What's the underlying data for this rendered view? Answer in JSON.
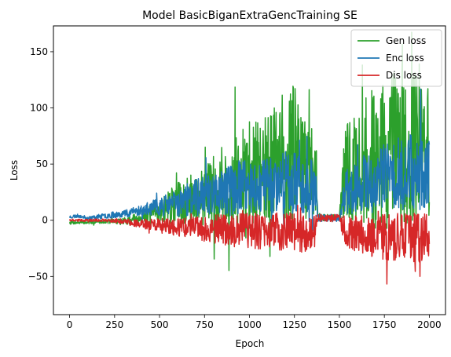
{
  "chart_data": {
    "type": "line",
    "title": "Model BasicBiganExtraGencTraining SE",
    "xlabel": "Epoch",
    "ylabel": "Loss",
    "xlim": [
      -90,
      2090
    ],
    "ylim": [
      -84,
      173
    ],
    "xticks": [
      0,
      250,
      500,
      750,
      1000,
      1250,
      1500,
      1750,
      2000
    ],
    "yticks": [
      -50,
      0,
      50,
      100,
      150
    ],
    "grid": false,
    "legend_position": "top-right",
    "series": [
      {
        "name": "Gen loss",
        "color": "#2ca02c",
        "noise_seed": 7,
        "envelope": [
          [
            0,
            -2,
            1.0
          ],
          [
            100,
            -2,
            0.8
          ],
          [
            200,
            -1,
            1.0
          ],
          [
            300,
            -1,
            2.0
          ],
          [
            400,
            3,
            3.0
          ],
          [
            500,
            8,
            6.0
          ],
          [
            600,
            15,
            12.0
          ],
          [
            700,
            20,
            15.0
          ],
          [
            800,
            25,
            20.0
          ],
          [
            900,
            30,
            25.0
          ],
          [
            1000,
            40,
            30.0
          ],
          [
            1100,
            45,
            30.0
          ],
          [
            1200,
            55,
            40.0
          ],
          [
            1250,
            60,
            40.0
          ],
          [
            1300,
            45,
            30.0
          ],
          [
            1370,
            40,
            25.0
          ],
          [
            1380,
            3,
            2.0
          ],
          [
            1500,
            2,
            2.0
          ],
          [
            1530,
            40,
            30.0
          ],
          [
            1600,
            45,
            35.0
          ],
          [
            1700,
            55,
            40.0
          ],
          [
            1800,
            60,
            45.0
          ],
          [
            1900,
            65,
            45.0
          ],
          [
            2000,
            60,
            40.0
          ]
        ]
      },
      {
        "name": "Enc loss",
        "color": "#1f77b4",
        "noise_seed": 23,
        "envelope": [
          [
            0,
            3,
            1.0
          ],
          [
            50,
            4,
            1.0
          ],
          [
            100,
            2,
            0.8
          ],
          [
            200,
            4,
            1.5
          ],
          [
            300,
            6,
            2.0
          ],
          [
            400,
            9,
            3.0
          ],
          [
            500,
            12,
            5.0
          ],
          [
            600,
            16,
            8.0
          ],
          [
            700,
            20,
            10.0
          ],
          [
            800,
            24,
            12.0
          ],
          [
            900,
            28,
            15.0
          ],
          [
            1000,
            30,
            16.0
          ],
          [
            1100,
            32,
            16.0
          ],
          [
            1200,
            35,
            18.0
          ],
          [
            1300,
            32,
            16.0
          ],
          [
            1370,
            30,
            14.0
          ],
          [
            1380,
            2,
            2.0
          ],
          [
            1500,
            2,
            2.0
          ],
          [
            1530,
            25,
            12.0
          ],
          [
            1600,
            30,
            15.0
          ],
          [
            1700,
            35,
            18.0
          ],
          [
            1800,
            40,
            20.0
          ],
          [
            1900,
            45,
            22.0
          ],
          [
            2000,
            40,
            20.0
          ]
        ]
      },
      {
        "name": "Dis loss",
        "color": "#d62728",
        "noise_seed": 41,
        "envelope": [
          [
            0,
            0,
            0.5
          ],
          [
            200,
            0,
            0.8
          ],
          [
            300,
            -1,
            1.5
          ],
          [
            400,
            -3,
            2.5
          ],
          [
            500,
            -5,
            4.0
          ],
          [
            600,
            -6,
            5.0
          ],
          [
            700,
            -7,
            6.0
          ],
          [
            800,
            -8,
            8.0
          ],
          [
            900,
            -9,
            9.0
          ],
          [
            1000,
            -9,
            10.0
          ],
          [
            1100,
            -10,
            10.0
          ],
          [
            1200,
            -10,
            11.0
          ],
          [
            1300,
            -11,
            11.0
          ],
          [
            1370,
            -11,
            11.0
          ],
          [
            1380,
            2,
            2.0
          ],
          [
            1500,
            2,
            2.0
          ],
          [
            1530,
            -10,
            9.0
          ],
          [
            1600,
            -12,
            10.0
          ],
          [
            1700,
            -14,
            12.0
          ],
          [
            1800,
            -15,
            14.0
          ],
          [
            1900,
            -16,
            15.0
          ],
          [
            2000,
            -14,
            12.0
          ]
        ]
      }
    ]
  }
}
